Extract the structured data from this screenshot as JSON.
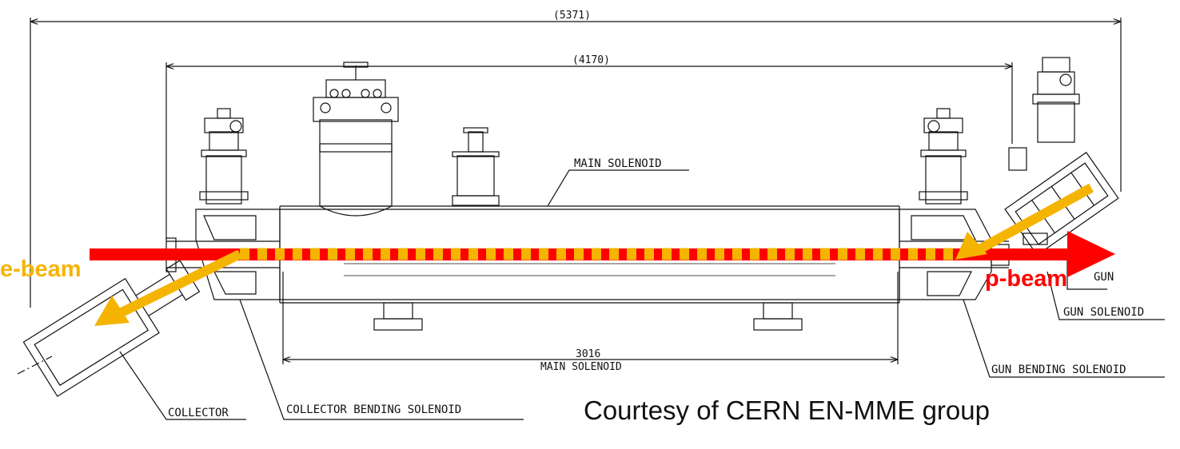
{
  "dimensions": {
    "overall": "(5371)",
    "inner": "(4170)",
    "solenoid_length": "3016",
    "solenoid_length_label": "MAIN SOLENOID"
  },
  "labels": {
    "main_solenoid": "MAIN SOLENOID",
    "gun": "GUN",
    "gun_solenoid": "GUN SOLENOID",
    "gun_bending_solenoid": "GUN BENDING SOLENOID",
    "collector": "COLLECTOR",
    "collector_bending_solenoid": "COLLECTOR  BENDING SOLENOID"
  },
  "beams": {
    "e_beam": "e-beam",
    "p_beam": "p-beam",
    "e_beam_color": "#f5b400",
    "p_beam_color": "#ff0000"
  },
  "credit": "Courtesy of CERN EN-MME group",
  "colors": {
    "line": "#111111"
  }
}
